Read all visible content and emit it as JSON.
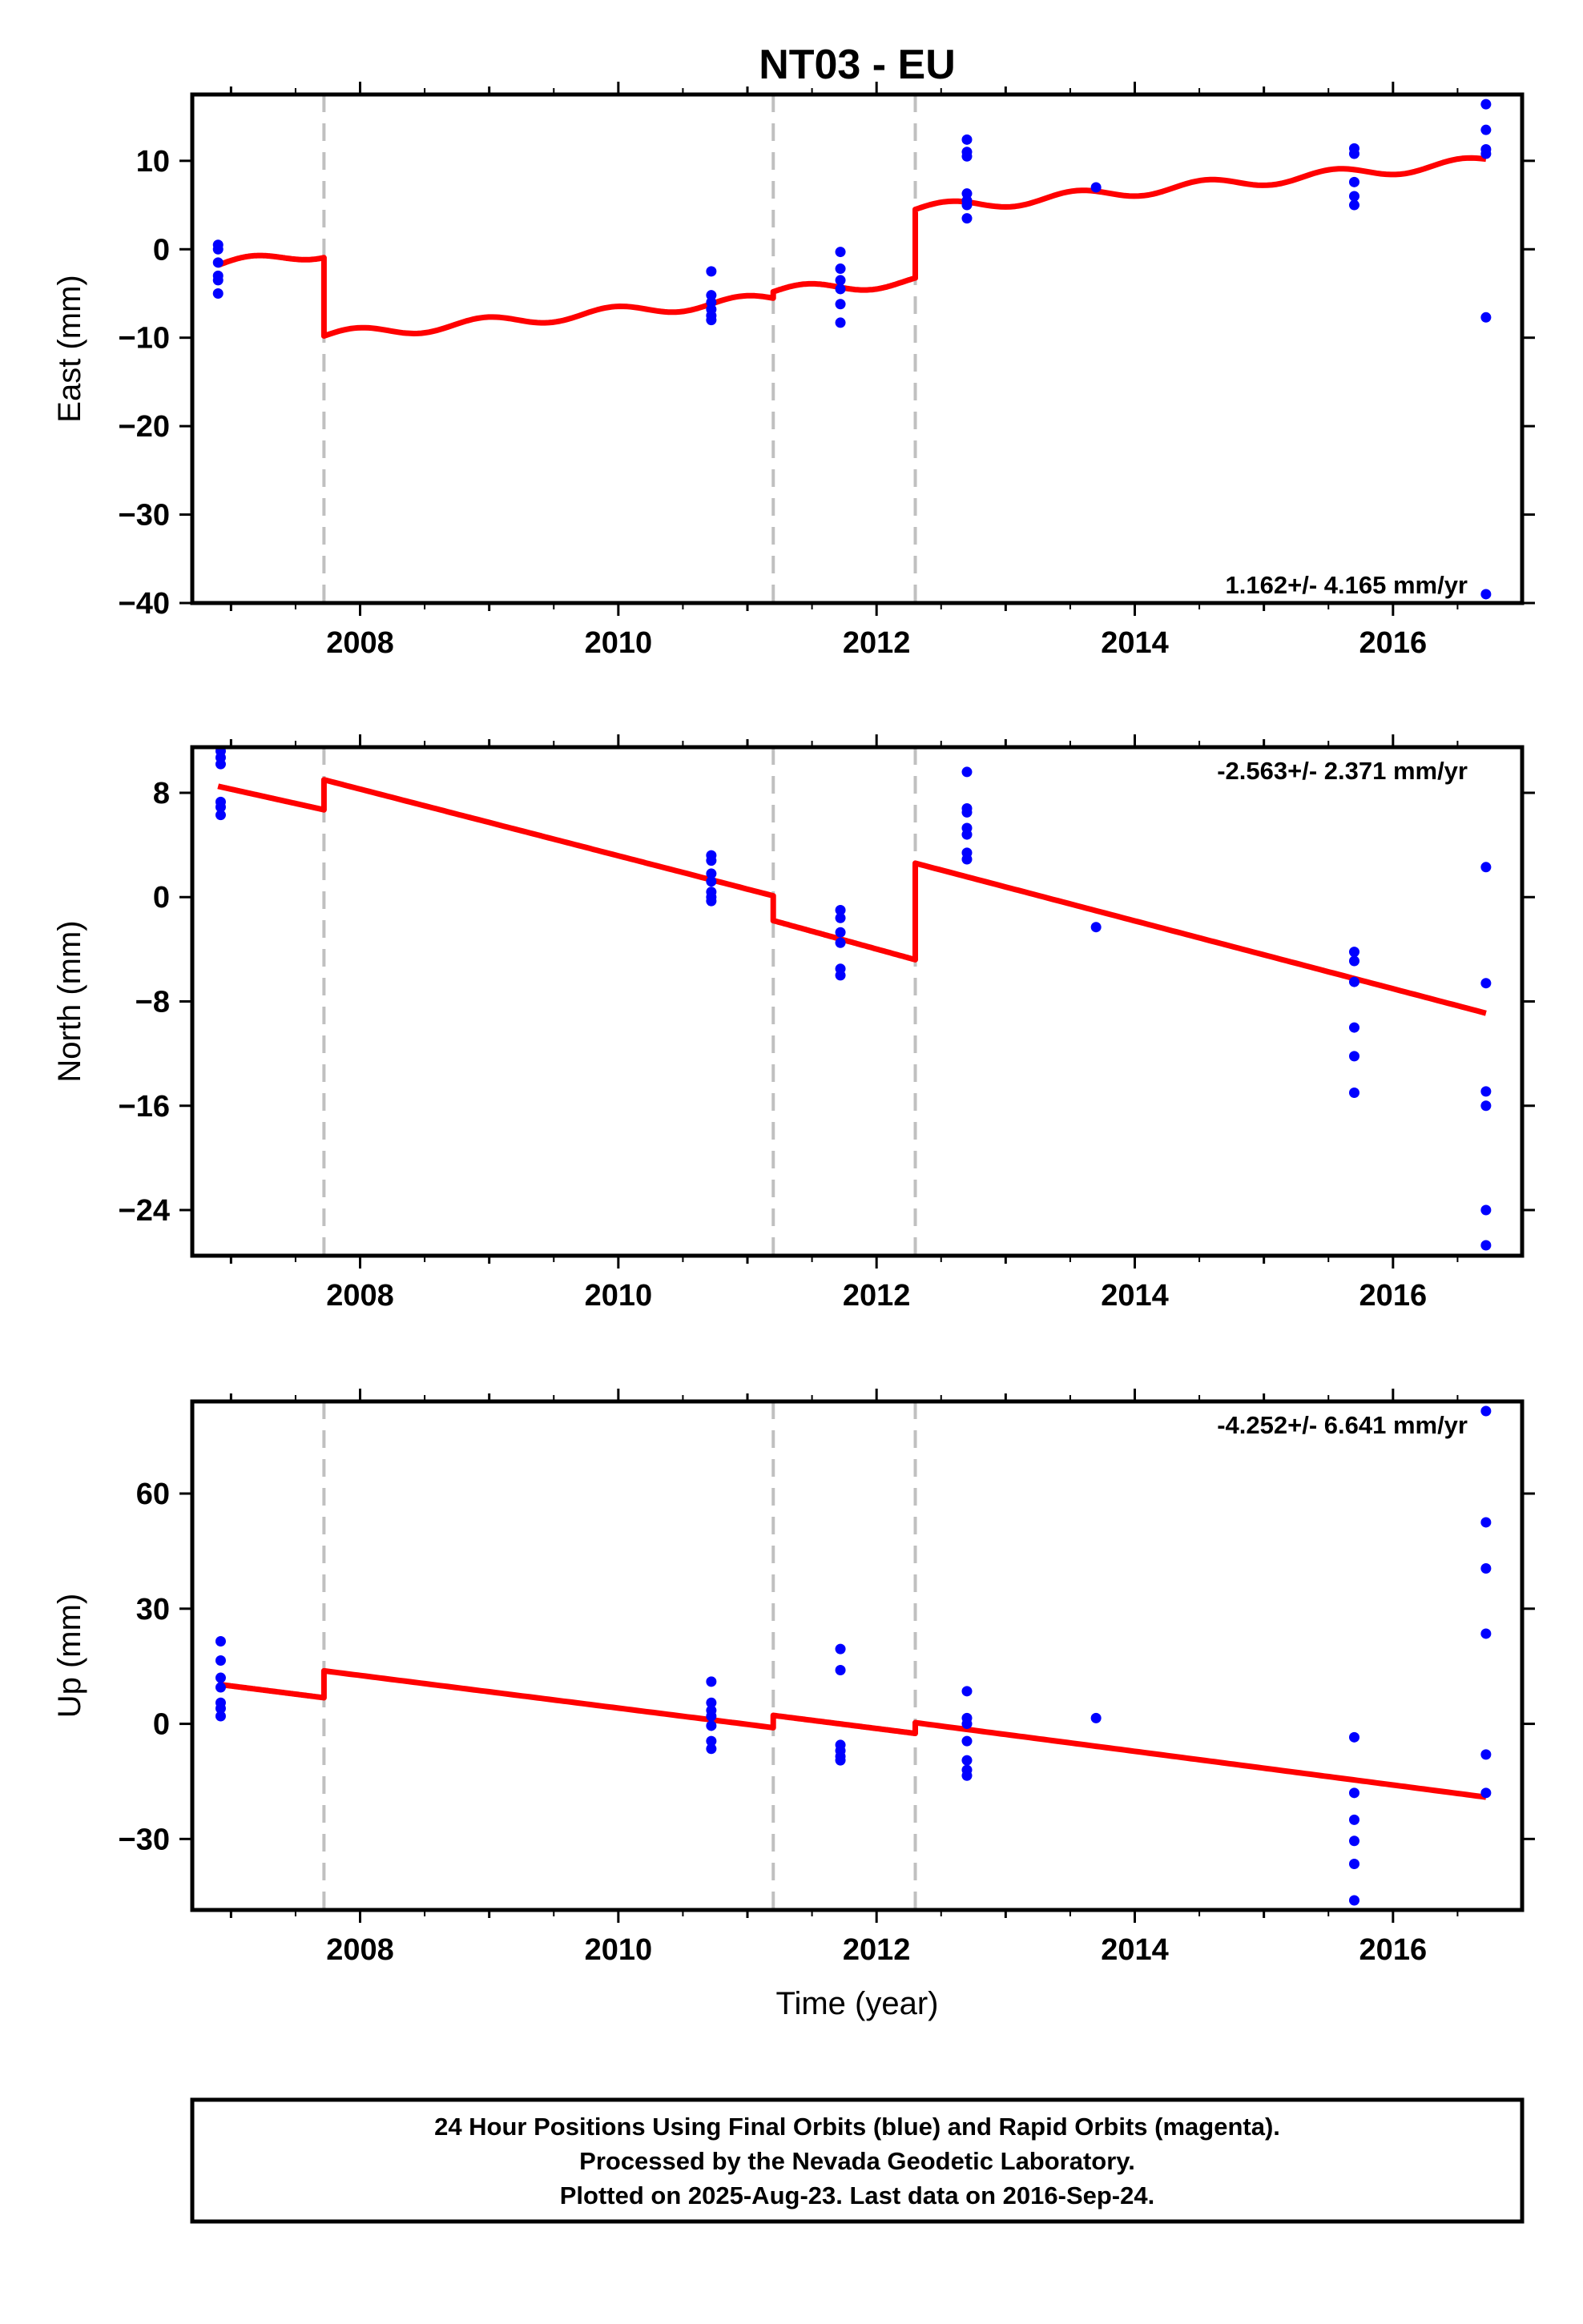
{
  "title": "NT03 - EU",
  "xlabel": "Time (year)",
  "xticks": [
    2008,
    2010,
    2012,
    2014,
    2016
  ],
  "colors": {
    "data": "#0000ff",
    "model": "#ff0000",
    "break": "#c0c0c0"
  },
  "caption": [
    "24 Hour Positions Using Final Orbits (blue) and Rapid Orbits (magenta).",
    "Processed by the Nevada Geodetic Laboratory.",
    "Plotted on 2025-Aug-23. Last data on 2016-Sep-24."
  ],
  "chart_data": [
    {
      "type": "scatter",
      "ylabel": "East (mm)",
      "xlim": [
        2006.7,
        2017.0
      ],
      "ylim": [
        -40,
        17.5
      ],
      "yticks": [
        -40,
        -30,
        -20,
        -10,
        0,
        10
      ],
      "rate": "1.162+/- 4.165 mm/yr",
      "rate_position": "bottom-right",
      "breaks": [
        2007.72,
        2011.2,
        2012.3
      ],
      "points": [
        [
          2006.9,
          0.5
        ],
        [
          2006.9,
          0.0
        ],
        [
          2006.9,
          -1.5
        ],
        [
          2006.9,
          -3.0
        ],
        [
          2006.9,
          -3.5
        ],
        [
          2006.9,
          -5.0
        ],
        [
          2010.72,
          -2.5
        ],
        [
          2010.72,
          -5.2
        ],
        [
          2010.72,
          -6.0
        ],
        [
          2010.72,
          -6.8
        ],
        [
          2010.72,
          -7.5
        ],
        [
          2010.72,
          -8.0
        ],
        [
          2011.72,
          -0.3
        ],
        [
          2011.72,
          -2.2
        ],
        [
          2011.72,
          -3.5
        ],
        [
          2011.72,
          -4.5
        ],
        [
          2011.72,
          -6.2
        ],
        [
          2011.72,
          -8.3
        ],
        [
          2012.7,
          12.4
        ],
        [
          2012.7,
          11.0
        ],
        [
          2012.7,
          10.5
        ],
        [
          2012.7,
          6.3
        ],
        [
          2012.7,
          5.5
        ],
        [
          2012.7,
          5.0
        ],
        [
          2012.7,
          3.5
        ],
        [
          2013.7,
          7.0
        ],
        [
          2015.7,
          11.4
        ],
        [
          2015.7,
          10.8
        ],
        [
          2015.7,
          7.6
        ],
        [
          2015.7,
          6.0
        ],
        [
          2015.7,
          5.0
        ],
        [
          2016.72,
          16.4
        ],
        [
          2016.72,
          13.5
        ],
        [
          2016.72,
          11.3
        ],
        [
          2016.72,
          10.8
        ],
        [
          2016.72,
          -7.7
        ],
        [
          2016.72,
          -39.0
        ]
      ],
      "model": {
        "segments": [
          {
            "x0": 2006.9,
            "x1": 2007.72,
            "y0": -1.8,
            "y1": -0.4
          },
          {
            "x0": 2007.72,
            "x1": 2011.2,
            "y0": -9.8,
            "y1": -5.6
          },
          {
            "x0": 2011.2,
            "x1": 2012.3,
            "y0": -4.8,
            "y1": -3.6
          },
          {
            "x0": 2012.3,
            "x1": 2016.72,
            "y0": 4.5,
            "y1": 9.9
          }
        ],
        "seasonal_amplitude": 0.6
      }
    },
    {
      "type": "scatter",
      "ylabel": "North (mm)",
      "xlim": [
        2006.7,
        2017.0
      ],
      "ylim": [
        -27.5,
        11.5
      ],
      "yticks": [
        -24,
        -16,
        -8,
        0,
        8
      ],
      "rate": "-2.563+/- 2.371 mm/yr",
      "rate_position": "top-right",
      "breaks": [
        2007.72,
        2011.2,
        2012.3
      ],
      "points": [
        [
          2006.92,
          11.2
        ],
        [
          2006.92,
          10.7
        ],
        [
          2006.92,
          10.2
        ],
        [
          2006.92,
          7.3
        ],
        [
          2006.92,
          6.9
        ],
        [
          2006.92,
          6.3
        ],
        [
          2010.72,
          3.2
        ],
        [
          2010.72,
          2.8
        ],
        [
          2010.72,
          1.8
        ],
        [
          2010.72,
          1.2
        ],
        [
          2010.72,
          0.4
        ],
        [
          2010.72,
          0.0
        ],
        [
          2010.72,
          -0.3
        ],
        [
          2011.72,
          -1.0
        ],
        [
          2011.72,
          -1.6
        ],
        [
          2011.72,
          -2.7
        ],
        [
          2011.72,
          -3.5
        ],
        [
          2011.72,
          -5.5
        ],
        [
          2011.72,
          -6.0
        ],
        [
          2012.7,
          9.6
        ],
        [
          2012.7,
          6.8
        ],
        [
          2012.7,
          6.5
        ],
        [
          2012.7,
          5.3
        ],
        [
          2012.7,
          4.8
        ],
        [
          2012.7,
          3.4
        ],
        [
          2012.7,
          2.9
        ],
        [
          2013.7,
          -2.3
        ],
        [
          2015.7,
          -4.2
        ],
        [
          2015.7,
          -4.9
        ],
        [
          2015.7,
          -6.5
        ],
        [
          2015.7,
          -10.0
        ],
        [
          2015.7,
          -12.2
        ],
        [
          2015.7,
          -15.0
        ],
        [
          2016.72,
          2.3
        ],
        [
          2016.72,
          -6.6
        ],
        [
          2016.72,
          -14.9
        ],
        [
          2016.72,
          -16.0
        ],
        [
          2016.72,
          -24.0
        ],
        [
          2016.72,
          -26.7
        ]
      ],
      "model": {
        "segments": [
          {
            "x0": 2006.9,
            "x1": 2007.72,
            "y0": 8.5,
            "y1": 6.7
          },
          {
            "x0": 2007.72,
            "x1": 2011.2,
            "y0": 9.0,
            "y1": 0.1
          },
          {
            "x0": 2011.2,
            "x1": 2012.3,
            "y0": -1.8,
            "y1": -4.8
          },
          {
            "x0": 2012.3,
            "x1": 2016.72,
            "y0": 2.6,
            "y1": -8.9
          }
        ],
        "seasonal_amplitude": 0.0
      }
    },
    {
      "type": "scatter",
      "ylabel": "Up (mm)",
      "xlim": [
        2006.7,
        2017.0
      ],
      "ylim": [
        -48.5,
        84
      ],
      "yticks": [
        -30,
        0,
        30,
        60
      ],
      "rate": "-4.252+/- 6.641 mm/yr",
      "rate_position": "top-right",
      "breaks": [
        2007.72,
        2011.2,
        2012.3
      ],
      "points": [
        [
          2006.92,
          21.5
        ],
        [
          2006.92,
          16.5
        ],
        [
          2006.92,
          12.0
        ],
        [
          2006.92,
          9.5
        ],
        [
          2006.92,
          5.5
        ],
        [
          2006.92,
          4.0
        ],
        [
          2006.92,
          2.0
        ],
        [
          2010.72,
          11.0
        ],
        [
          2010.72,
          5.5
        ],
        [
          2010.72,
          3.5
        ],
        [
          2010.72,
          2.0
        ],
        [
          2010.72,
          -0.5
        ],
        [
          2010.72,
          -4.5
        ],
        [
          2010.72,
          -6.5
        ],
        [
          2011.72,
          19.5
        ],
        [
          2011.72,
          14.0
        ],
        [
          2011.72,
          -5.5
        ],
        [
          2011.72,
          -7.0
        ],
        [
          2011.72,
          -8.5
        ],
        [
          2011.72,
          -9.5
        ],
        [
          2012.7,
          8.5
        ],
        [
          2012.7,
          1.5
        ],
        [
          2012.7,
          0.0
        ],
        [
          2012.7,
          -4.5
        ],
        [
          2012.7,
          -9.5
        ],
        [
          2012.7,
          -12.0
        ],
        [
          2012.7,
          -13.5
        ],
        [
          2013.7,
          1.5
        ],
        [
          2015.7,
          -3.5
        ],
        [
          2015.7,
          -18.0
        ],
        [
          2015.7,
          -25.0
        ],
        [
          2015.7,
          -30.5
        ],
        [
          2015.7,
          -36.5
        ],
        [
          2015.7,
          -46.0
        ],
        [
          2016.72,
          81.5
        ],
        [
          2016.72,
          52.5
        ],
        [
          2016.72,
          40.5
        ],
        [
          2016.72,
          23.5
        ],
        [
          2016.72,
          -8.0
        ],
        [
          2016.72,
          -18.0
        ]
      ],
      "model": {
        "segments": [
          {
            "x0": 2006.9,
            "x1": 2007.72,
            "y0": 10.3,
            "y1": 6.8
          },
          {
            "x0": 2007.72,
            "x1": 2011.2,
            "y0": 13.8,
            "y1": -1.0
          },
          {
            "x0": 2011.2,
            "x1": 2012.3,
            "y0": 2.2,
            "y1": -2.5
          },
          {
            "x0": 2012.3,
            "x1": 2016.72,
            "y0": 0.3,
            "y1": -19.1
          }
        ],
        "seasonal_amplitude": 0.0
      }
    }
  ]
}
